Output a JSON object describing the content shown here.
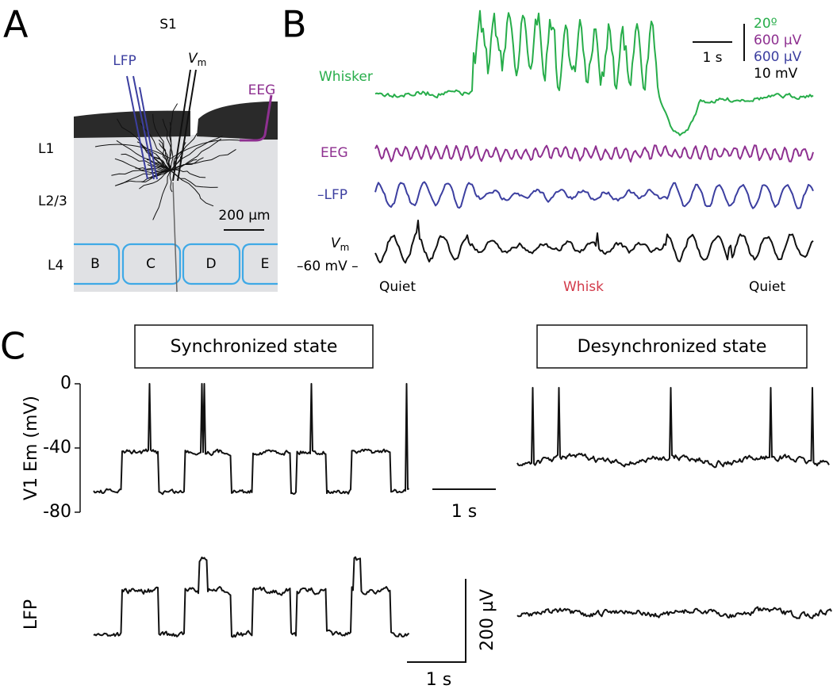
{
  "panel_a": {
    "label": "A",
    "region": "S1",
    "lfp": "LFP",
    "vm": {
      "symbol": "V",
      "subscript": "m"
    },
    "eeg": "EEG",
    "layers": [
      "L1",
      "L2/3",
      "L4"
    ],
    "scale_bar": "200 µm",
    "barrels": [
      "B",
      "C",
      "D",
      "E"
    ]
  },
  "panel_b": {
    "label": "B",
    "traces": {
      "whisker": "Whisker",
      "eeg": "EEG",
      "lfp": "–LFP",
      "vm": {
        "symbol": "V",
        "subscript": "m"
      }
    },
    "vm_level": "–60 mV –",
    "scale": {
      "time": "1 s",
      "whisker": "20º",
      "eeg": "600 µV",
      "lfp": "600 µV",
      "vm": "10 mV"
    },
    "states": [
      "Quiet",
      "Whisk",
      "Quiet"
    ]
  },
  "panel_c": {
    "label": "C",
    "states": [
      "Synchronized state",
      "Desynchronized state"
    ],
    "vm_axis": {
      "label": "V1 Em (mV)",
      "ylim": [
        0,
        -80
      ],
      "yticks": [
        0,
        -40,
        -80
      ]
    },
    "vm_scale": "1 s",
    "lfp_label": "LFP",
    "lfp_scale": {
      "amplitude": "200 µV",
      "time": "1 s"
    }
  }
}
